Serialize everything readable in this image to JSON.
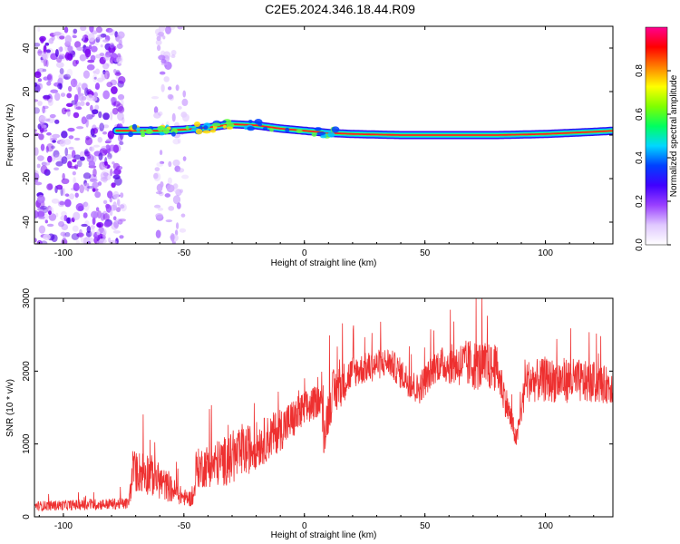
{
  "title": "C2E5.2024.346.18.44.R09",
  "chart_data": [
    {
      "type": "heatmap",
      "xlabel": "Height of straight line (km)",
      "ylabel": "Frequency (Hz)",
      "xlim": [
        -112,
        128
      ],
      "ylim": [
        -50,
        50
      ],
      "xticks": [
        -100,
        -50,
        0,
        50,
        100
      ],
      "yticks": [
        40,
        20,
        0,
        -20,
        -40
      ],
      "colorbar": {
        "label": "Normalized spectral amplitude",
        "range": [
          0,
          1
        ],
        "ticks": [
          "0.0",
          "0.2",
          "0.4",
          "0.6",
          "0.8"
        ],
        "colors": [
          "#ffffff",
          "#e0c8ff",
          "#9a40ff",
          "#4000ff",
          "#0040ff",
          "#00d8ff",
          "#00ff60",
          "#80ff00",
          "#ffff00",
          "#ff8000",
          "#ff0000",
          "#ff0090"
        ]
      },
      "signal_track": [
        {
          "x": -78,
          "y": 2.0
        },
        {
          "x": -70,
          "y": 2.0
        },
        {
          "x": -60,
          "y": 2.0
        },
        {
          "x": -50,
          "y": 2.5
        },
        {
          "x": -40,
          "y": 3.5
        },
        {
          "x": -30,
          "y": 5.0
        },
        {
          "x": -20,
          "y": 4.5
        },
        {
          "x": -10,
          "y": 3.0
        },
        {
          "x": 0,
          "y": 2.0
        },
        {
          "x": 10,
          "y": 1.0
        },
        {
          "x": 20,
          "y": 0.5
        },
        {
          "x": 40,
          "y": 0.0
        },
        {
          "x": 60,
          "y": 0.0
        },
        {
          "x": 80,
          "y": 0.0
        },
        {
          "x": 100,
          "y": 0.5
        },
        {
          "x": 120,
          "y": 1.5
        },
        {
          "x": 128,
          "y": 2.0
        }
      ],
      "noise_regions": [
        {
          "x_from": -112,
          "x_to": -75,
          "density": "high"
        },
        {
          "x_from": -62,
          "x_to": -49,
          "density": "low"
        }
      ]
    },
    {
      "type": "line",
      "xlabel": "Height of straight line (km)",
      "ylabel": "SNR (10 * v/v)",
      "xlim": [
        -112,
        128
      ],
      "ylim": [
        0,
        3000
      ],
      "xticks": [
        -100,
        -50,
        0,
        50,
        100
      ],
      "yticks": [
        0,
        1000,
        2000,
        3000
      ],
      "color": "#ee3030",
      "envelope": [
        {
          "x": -112,
          "base": 120,
          "spread": 150
        },
        {
          "x": -73,
          "base": 150,
          "spread": 180
        },
        {
          "x": -71,
          "base": 500,
          "spread": 600
        },
        {
          "x": -66,
          "base": 500,
          "spread": 700
        },
        {
          "x": -58,
          "base": 350,
          "spread": 500
        },
        {
          "x": -50,
          "base": 220,
          "spread": 250
        },
        {
          "x": -46,
          "base": 200,
          "spread": 250
        },
        {
          "x": -45,
          "base": 550,
          "spread": 600
        },
        {
          "x": -30,
          "base": 650,
          "spread": 800
        },
        {
          "x": -15,
          "base": 950,
          "spread": 700
        },
        {
          "x": 0,
          "base": 1350,
          "spread": 600
        },
        {
          "x": 7,
          "base": 1550,
          "spread": 450
        },
        {
          "x": 8,
          "base": 1000,
          "spread": 600
        },
        {
          "x": 11,
          "base": 1500,
          "spread": 800
        },
        {
          "x": 20,
          "base": 1900,
          "spread": 500
        },
        {
          "x": 35,
          "base": 2050,
          "spread": 450
        },
        {
          "x": 47,
          "base": 1650,
          "spread": 500
        },
        {
          "x": 55,
          "base": 2000,
          "spread": 500
        },
        {
          "x": 70,
          "base": 1950,
          "spread": 800
        },
        {
          "x": 80,
          "base": 1900,
          "spread": 700
        },
        {
          "x": 88,
          "base": 1000,
          "spread": 300
        },
        {
          "x": 92,
          "base": 1750,
          "spread": 650
        },
        {
          "x": 110,
          "base": 1750,
          "spread": 700
        },
        {
          "x": 128,
          "base": 1700,
          "spread": 550
        }
      ]
    }
  ]
}
